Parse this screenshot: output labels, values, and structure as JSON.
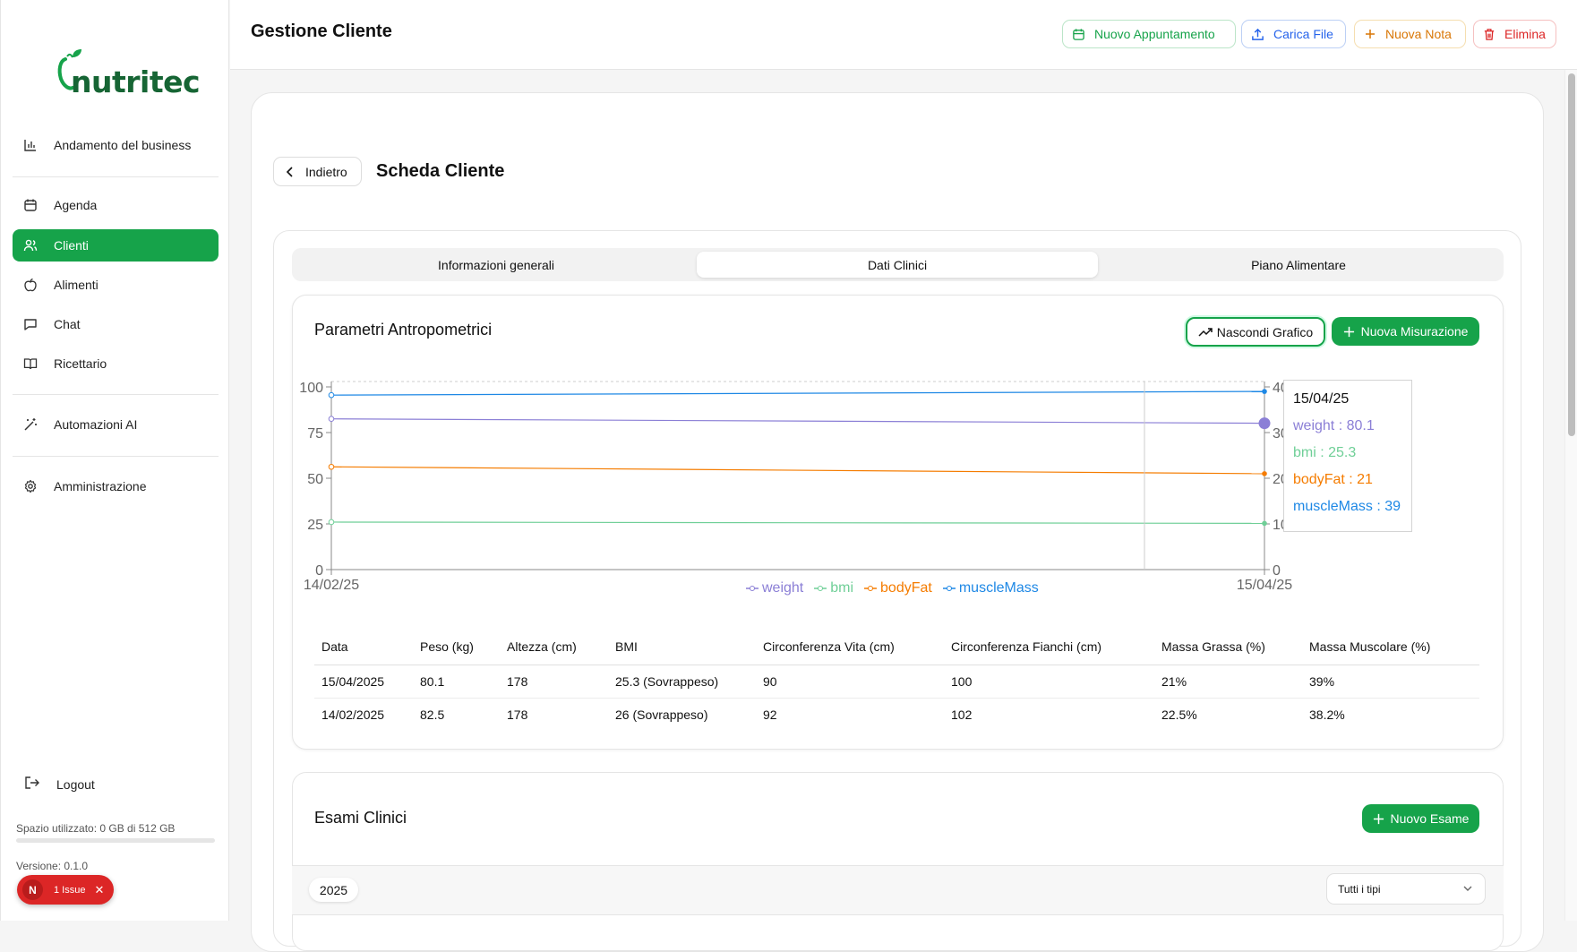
{
  "app": {
    "brand": "nutritec"
  },
  "sidebar": {
    "items": [
      {
        "label": "Andamento del business",
        "icon": "bar-chart-icon"
      },
      {
        "label": "Agenda",
        "icon": "calendar-icon"
      },
      {
        "label": "Clienti",
        "icon": "users-icon"
      },
      {
        "label": "Alimenti",
        "icon": "apple-icon"
      },
      {
        "label": "Chat",
        "icon": "chat-icon"
      },
      {
        "label": "Ricettario",
        "icon": "book-icon"
      },
      {
        "label": "Automazioni AI",
        "icon": "wand-icon"
      },
      {
        "label": "Amministrazione",
        "icon": "gear-icon"
      }
    ],
    "logout": "Logout",
    "storage": "Spazio utilizzato: 0 GB di 512 GB",
    "storage_fraction": 0,
    "version": "Versione: 0.1.0",
    "issue": {
      "letter": "N",
      "label": "1 Issue"
    }
  },
  "header": {
    "title": "Gestione Cliente",
    "buttons": {
      "appointment": "Nuovo Appuntamento",
      "upload": "Carica File",
      "note": "Nuova Nota",
      "delete": "Elimina"
    }
  },
  "card": {
    "back": "Indietro",
    "title": "Scheda Cliente",
    "tabs": [
      "Informazioni generali",
      "Dati Clinici",
      "Piano Alimentare"
    ],
    "active_tab": "Dati Clinici"
  },
  "anthro": {
    "title": "Parametri Antropometrici",
    "hide_chart": "Nascondi Grafico",
    "new_measure": "Nuova Misurazione",
    "table": {
      "headers": [
        "Data",
        "Peso (kg)",
        "Altezza (cm)",
        "BMI",
        "Circonferenza Vita (cm)",
        "Circonferenza Fianchi (cm)",
        "Massa Grassa (%)",
        "Massa Muscolare (%)"
      ],
      "rows": [
        [
          "15/04/2025",
          "80.1",
          "178",
          "25.3 (Sovrappeso)",
          "90",
          "100",
          "21%",
          "39%"
        ],
        [
          "14/02/2025",
          "82.5",
          "178",
          "26 (Sovrappeso)",
          "92",
          "102",
          "22.5%",
          "38.2%"
        ]
      ]
    }
  },
  "tooltip": {
    "date": "15/04/25",
    "weight": "weight : 80.1",
    "bmi": "bmi : 25.3",
    "bodyFat": "bodyFat : 21",
    "muscleMass": "muscleMass : 39"
  },
  "chart_data": {
    "type": "line",
    "x": [
      "14/02/25",
      "15/04/25"
    ],
    "series": [
      {
        "name": "weight",
        "values": [
          82.5,
          80.1
        ],
        "axis": "left",
        "color": "#8b7fd6"
      },
      {
        "name": "bmi",
        "values": [
          26,
          25.3
        ],
        "axis": "left",
        "color": "#6fcf97"
      },
      {
        "name": "bodyFat",
        "values": [
          22.5,
          21
        ],
        "axis": "right",
        "color": "#f57c00"
      },
      {
        "name": "muscleMass",
        "values": [
          38.2,
          39
        ],
        "axis": "right",
        "color": "#1e88e5"
      }
    ],
    "y_left": {
      "ticks": [
        "0",
        "25",
        "50",
        "75",
        "100"
      ],
      "range": [
        0,
        100
      ]
    },
    "y_right": {
      "ticks": [
        "0",
        "10",
        "20",
        "30",
        "40"
      ],
      "range": [
        0,
        40
      ]
    },
    "legend": [
      "weight",
      "bmi",
      "bodyFat",
      "muscleMass"
    ],
    "legend_position": "bottom"
  },
  "exams": {
    "title": "Esami Clinici",
    "new_exam": "Nuovo Esame",
    "year": "2025",
    "filter": "Tutti i tipi"
  }
}
